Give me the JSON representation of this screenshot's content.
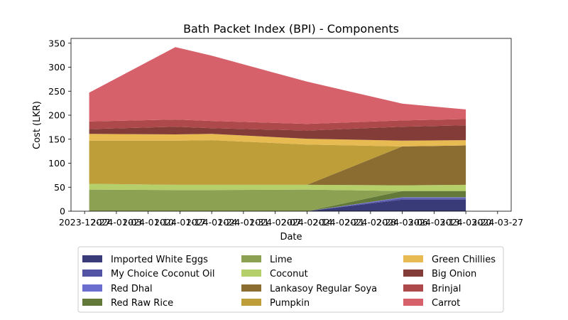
{
  "chart_data": {
    "type": "area",
    "stacked": true,
    "title": "Bath Packet Index (BPI) - Components",
    "xlabel": "Date",
    "ylabel": "Cost (LKR)",
    "x_ticks": [
      "2023-12-27",
      "2024-01-03",
      "2024-01-10",
      "2024-01-17",
      "2024-01-24",
      "2024-01-31",
      "2024-02-07",
      "2024-02-14",
      "2024-02-21",
      "2024-02-28",
      "2024-03-06",
      "2024-03-13",
      "2024-03-20",
      "2024-03-27"
    ],
    "y_ticks": [
      0,
      50,
      100,
      150,
      200,
      250,
      300,
      350
    ],
    "ylim": [
      0,
      360
    ],
    "legend_position": "bottom",
    "legend_columns": 3,
    "grid": false,
    "x": [
      "2023-12-28",
      "2024-01-16",
      "2024-01-24",
      "2024-02-14",
      "2024-03-06",
      "2024-03-20"
    ],
    "series": [
      {
        "name": "Imported White Eggs",
        "color": "#393b79",
        "values": [
          0,
          0,
          0,
          0,
          24,
          24
        ]
      },
      {
        "name": "My Choice Coconut Oil",
        "color": "#5254a3",
        "values": [
          0,
          0,
          0,
          0,
          3,
          3
        ]
      },
      {
        "name": "Red Dhal",
        "color": "#6b6ecf",
        "values": [
          0,
          0,
          0,
          0,
          2,
          2
        ]
      },
      {
        "name": "Red Raw Rice",
        "color": "#637939",
        "values": [
          0,
          0,
          0,
          0,
          13,
          13
        ]
      },
      {
        "name": "Lime",
        "color": "#8ca252",
        "values": [
          45,
          44,
          44,
          45,
          0,
          0
        ]
      },
      {
        "name": "Coconut",
        "color": "#b5cf6b",
        "values": [
          12,
          11,
          11,
          10,
          12,
          13
        ]
      },
      {
        "name": "Lankasoy Regular Soya",
        "color": "#8c6d31",
        "values": [
          0,
          0,
          0,
          0,
          81,
          82
        ]
      },
      {
        "name": "Pumpkin",
        "color": "#bd9e39",
        "values": [
          90,
          92,
          93,
          84,
          0,
          0
        ]
      },
      {
        "name": "Green Chillies",
        "color": "#e7ba52",
        "values": [
          14,
          13,
          13,
          12,
          12,
          11
        ]
      },
      {
        "name": "Big Onion",
        "color": "#843c39",
        "values": [
          10,
          16,
          12,
          17,
          29,
          31
        ]
      },
      {
        "name": "Brinjal",
        "color": "#ad494a",
        "values": [
          16,
          15,
          15,
          14,
          13,
          13
        ]
      },
      {
        "name": "Carrot",
        "color": "#d6616b",
        "values": [
          60,
          151,
          136,
          88,
          35,
          20
        ]
      }
    ]
  }
}
